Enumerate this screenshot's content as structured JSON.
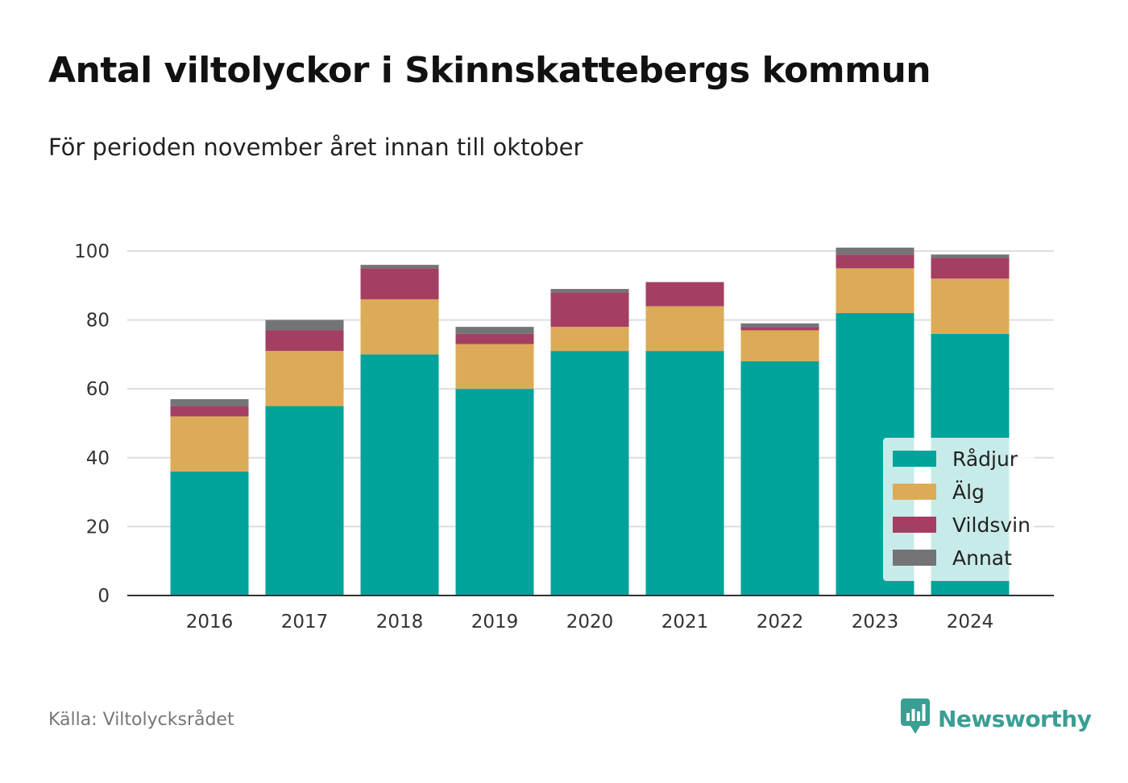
{
  "title": "Antal viltolyckor i Skinnskattebergs kommun",
  "subtitle": "För perioden november året innan till oktober",
  "source": "Källa: Viltolycksrådet",
  "brand": {
    "name": "Newsworthy",
    "icon": "newsworthy-logo-icon",
    "color": "#3a9e93"
  },
  "chart_data": {
    "type": "bar",
    "stacked": true,
    "categories": [
      "2016",
      "2017",
      "2018",
      "2019",
      "2020",
      "2021",
      "2022",
      "2023",
      "2024"
    ],
    "series": [
      {
        "name": "Rådjur",
        "color": "#00a39a",
        "values": [
          36,
          55,
          70,
          60,
          71,
          71,
          68,
          82,
          76
        ]
      },
      {
        "name": "Älg",
        "color": "#dcab57",
        "values": [
          16,
          16,
          16,
          13,
          7,
          13,
          9,
          13,
          16
        ]
      },
      {
        "name": "Vildsvin",
        "color": "#a53e63",
        "values": [
          3,
          6,
          9,
          3,
          10,
          7,
          1,
          4,
          6
        ]
      },
      {
        "name": "Annat",
        "color": "#737378",
        "values": [
          2,
          3,
          1,
          2,
          1,
          0,
          1,
          2,
          1
        ]
      }
    ],
    "ylim": [
      0,
      100
    ],
    "yticks": [
      "0",
      "20",
      "40",
      "60",
      "80",
      "100"
    ],
    "xlabel": "",
    "ylabel": "",
    "grid": true,
    "legend": "bottom-right"
  }
}
